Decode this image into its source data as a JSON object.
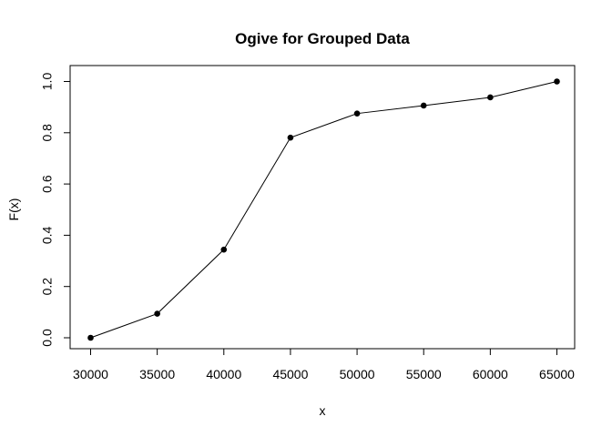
{
  "chart_data": {
    "type": "line",
    "title": "Ogive for Grouped Data",
    "xlabel": "x",
    "ylabel": "F(x)",
    "x": [
      30000,
      35000,
      40000,
      45000,
      50000,
      55000,
      60000,
      65000
    ],
    "y": [
      0.0,
      0.094,
      0.344,
      0.781,
      0.875,
      0.906,
      0.938,
      1.0
    ],
    "xlim": [
      30000,
      65000
    ],
    "ylim": [
      0.0,
      1.0
    ],
    "x_ticks": [
      30000,
      35000,
      40000,
      45000,
      50000,
      55000,
      60000,
      65000
    ],
    "x_tick_labels": [
      "30000",
      "35000",
      "40000",
      "45000",
      "50000",
      "55000",
      "60000",
      "65000"
    ],
    "y_ticks": [
      0.0,
      0.2,
      0.4,
      0.6,
      0.8,
      1.0
    ],
    "y_tick_labels": [
      "0.0",
      "0.2",
      "0.4",
      "0.6",
      "0.8",
      "1.0"
    ],
    "grid": false,
    "legend": "none",
    "line_color": "#000000",
    "point_color": "#000000",
    "marker": "filled-circle"
  }
}
